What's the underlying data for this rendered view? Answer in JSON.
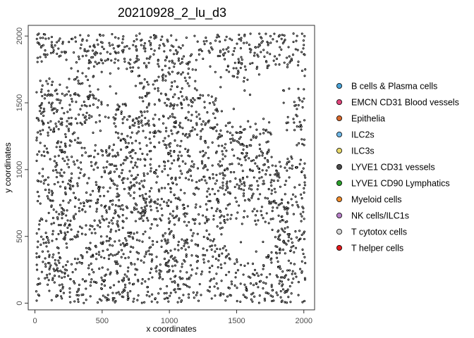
{
  "chart_data": {
    "type": "scatter",
    "title": "20210928_2_lu_d3",
    "xlabel": "x coordinates",
    "ylabel": "y coordinates",
    "xlim": [
      -50,
      2080
    ],
    "ylim": [
      -50,
      2080
    ],
    "xticks": [
      0,
      500,
      1000,
      1500,
      2000
    ],
    "yticks": [
      0,
      500,
      1000,
      1500,
      2000
    ],
    "grid": false,
    "legend_position": "right",
    "marker_style": "small black-outlined dots",
    "legend": [
      {
        "name": "B cells & Plasma cells",
        "color": "#4aa3d8"
      },
      {
        "name": "EMCN CD31 Blood vessels",
        "color": "#e0457b"
      },
      {
        "name": "Epithelia",
        "color": "#d8692c"
      },
      {
        "name": "ILC2s",
        "color": "#6fb7e6"
      },
      {
        "name": "ILC3s",
        "color": "#e7d86a"
      },
      {
        "name": "LYVE1 CD31 vessels",
        "color": "#4b4b4b"
      },
      {
        "name": "LYVE1 CD90 Lymphatics",
        "color": "#2ca02c"
      },
      {
        "name": "Myeloid cells",
        "color": "#f08c2c"
      },
      {
        "name": "NK cells/ILC1s",
        "color": "#b77fc8"
      },
      {
        "name": "T cytotox cells",
        "color": "#d4d4d4"
      },
      {
        "name": "T helper cells",
        "color": "#e41a1c"
      }
    ],
    "point_sample": [
      {
        "x": 20,
        "y": 2010
      },
      {
        "x": 80,
        "y": 1980
      },
      {
        "x": 150,
        "y": 1930
      },
      {
        "x": 230,
        "y": 1880
      },
      {
        "x": 300,
        "y": 1990
      },
      {
        "x": 420,
        "y": 1840
      },
      {
        "x": 560,
        "y": 1720
      },
      {
        "x": 650,
        "y": 1950
      },
      {
        "x": 760,
        "y": 1850
      },
      {
        "x": 900,
        "y": 2000
      },
      {
        "x": 1000,
        "y": 1760
      },
      {
        "x": 1100,
        "y": 1930
      },
      {
        "x": 1200,
        "y": 1820
      },
      {
        "x": 1320,
        "y": 1900
      },
      {
        "x": 1450,
        "y": 1980
      },
      {
        "x": 1560,
        "y": 2010
      },
      {
        "x": 1680,
        "y": 1880
      },
      {
        "x": 1800,
        "y": 1960
      },
      {
        "x": 1920,
        "y": 1860
      },
      {
        "x": 2010,
        "y": 1750
      },
      {
        "x": 50,
        "y": 1600
      },
      {
        "x": 130,
        "y": 1500
      },
      {
        "x": 200,
        "y": 1380
      },
      {
        "x": 320,
        "y": 1560
      },
      {
        "x": 470,
        "y": 1600
      },
      {
        "x": 620,
        "y": 1450
      },
      {
        "x": 780,
        "y": 1540
      },
      {
        "x": 880,
        "y": 1380
      },
      {
        "x": 980,
        "y": 1480
      },
      {
        "x": 1080,
        "y": 1350
      },
      {
        "x": 1160,
        "y": 1520
      },
      {
        "x": 1600,
        "y": 1560
      },
      {
        "x": 1700,
        "y": 1380
      },
      {
        "x": 1850,
        "y": 1500
      },
      {
        "x": 1980,
        "y": 1300
      },
      {
        "x": 1550,
        "y": 1150
      },
      {
        "x": 1520,
        "y": 1230
      },
      {
        "x": 1700,
        "y": 1300
      },
      {
        "x": 40,
        "y": 1200
      },
      {
        "x": 160,
        "y": 1050
      },
      {
        "x": 260,
        "y": 1180
      },
      {
        "x": 400,
        "y": 1100
      },
      {
        "x": 520,
        "y": 980
      },
      {
        "x": 640,
        "y": 1150
      },
      {
        "x": 760,
        "y": 1020
      },
      {
        "x": 860,
        "y": 1200
      },
      {
        "x": 960,
        "y": 1060
      },
      {
        "x": 1060,
        "y": 1180
      },
      {
        "x": 1150,
        "y": 1000
      },
      {
        "x": 1250,
        "y": 1100
      },
      {
        "x": 1350,
        "y": 960
      },
      {
        "x": 1450,
        "y": 1040
      },
      {
        "x": 1600,
        "y": 1000
      },
      {
        "x": 1750,
        "y": 960
      },
      {
        "x": 1880,
        "y": 1080
      },
      {
        "x": 2010,
        "y": 940
      },
      {
        "x": 30,
        "y": 800
      },
      {
        "x": 140,
        "y": 700
      },
      {
        "x": 260,
        "y": 860
      },
      {
        "x": 390,
        "y": 760
      },
      {
        "x": 500,
        "y": 650
      },
      {
        "x": 620,
        "y": 800
      },
      {
        "x": 740,
        "y": 700
      },
      {
        "x": 860,
        "y": 560
      },
      {
        "x": 960,
        "y": 760
      },
      {
        "x": 1070,
        "y": 620
      },
      {
        "x": 1180,
        "y": 820
      },
      {
        "x": 1280,
        "y": 700
      },
      {
        "x": 1380,
        "y": 600
      },
      {
        "x": 1500,
        "y": 760
      },
      {
        "x": 1560,
        "y": 880
      },
      {
        "x": 1660,
        "y": 620
      },
      {
        "x": 1760,
        "y": 820
      },
      {
        "x": 1860,
        "y": 560
      },
      {
        "x": 1960,
        "y": 720
      },
      {
        "x": 2000,
        "y": 860
      },
      {
        "x": 20,
        "y": 420
      },
      {
        "x": 100,
        "y": 300
      },
      {
        "x": 180,
        "y": 200
      },
      {
        "x": 260,
        "y": 80
      },
      {
        "x": 350,
        "y": 300
      },
      {
        "x": 440,
        "y": 160
      },
      {
        "x": 540,
        "y": 400
      },
      {
        "x": 650,
        "y": 80
      },
      {
        "x": 760,
        "y": 250
      },
      {
        "x": 860,
        "y": 420
      },
      {
        "x": 950,
        "y": 180
      },
      {
        "x": 1050,
        "y": 320
      },
      {
        "x": 1150,
        "y": 120
      },
      {
        "x": 1250,
        "y": 360
      },
      {
        "x": 1350,
        "y": 220
      },
      {
        "x": 1450,
        "y": 60
      },
      {
        "x": 1560,
        "y": 280
      },
      {
        "x": 1660,
        "y": 120
      },
      {
        "x": 1760,
        "y": 380
      },
      {
        "x": 1860,
        "y": 200
      },
      {
        "x": 1960,
        "y": 60
      },
      {
        "x": 2010,
        "y": 300
      }
    ]
  }
}
